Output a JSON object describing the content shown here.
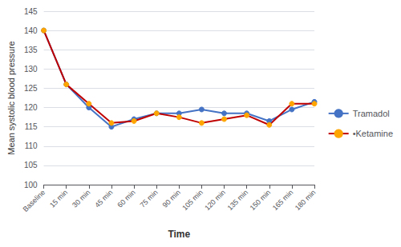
{
  "chart_data": {
    "type": "line",
    "x_label": "Time",
    "y_label": "Mean systolic blood pressure",
    "categories": [
      "Baseline",
      "15 min",
      "30 min",
      "45 min",
      "60 min",
      "75 min",
      "90 min",
      "105 min",
      "120 min",
      "135 min",
      "150 min",
      "165 min",
      "180 min"
    ],
    "series": [
      {
        "name": "Tramadol",
        "color": "#4472C4",
        "marker": "circle",
        "line_style": "solid",
        "values": [
          140,
          126,
          120,
          115,
          117,
          118.5,
          118.5,
          119.5,
          118.5,
          118.5,
          116.5,
          119.5,
          121.5
        ]
      },
      {
        "name": "•Ketamine",
        "color": "#C00000",
        "marker": "circle",
        "line_style": "solid",
        "colors": [
          "#FFA500",
          "#FFA500",
          "#FFA500",
          "#FFA500",
          "#FFA500",
          "#FFA500",
          "#FFA500",
          "#FFA500",
          "#FFA500",
          "#FFA500",
          "#FFA500",
          "#FFA500",
          "#FFA500"
        ],
        "values": [
          140,
          126,
          121,
          116,
          116.5,
          118.5,
          117.5,
          116,
          117,
          118,
          115.5,
          121,
          121
        ]
      }
    ],
    "ylim": [
      100,
      145
    ],
    "yticks": [
      100,
      105,
      110,
      115,
      120,
      125,
      130,
      135,
      140,
      145
    ],
    "grid": true,
    "legend": "right"
  }
}
